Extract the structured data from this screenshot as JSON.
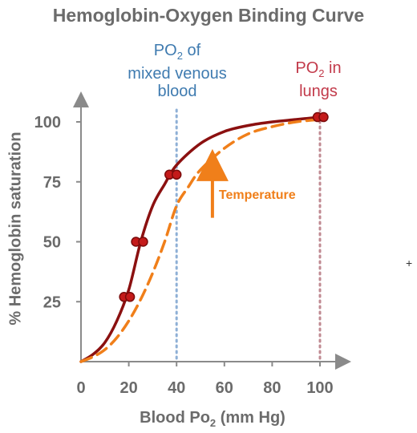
{
  "chart_data": {
    "type": "line",
    "title": "Hemoglobin-Oxygen Binding Curve",
    "xlabel_main": "Blood Po",
    "xlabel_sub": "2",
    "xlabel_rest": " (mm Hg)",
    "ylabel": "% Hemoglobin saturation",
    "xlim": [
      0,
      105
    ],
    "ylim": [
      0,
      110
    ],
    "xticks": [
      0,
      20,
      40,
      60,
      80,
      100
    ],
    "yticks": [
      25,
      50,
      75,
      100
    ],
    "series": [
      {
        "style": "solid",
        "color": "#8b1010",
        "x": [
          0,
          5,
          10,
          15,
          20,
          25,
          30,
          35,
          40,
          50,
          60,
          70,
          80,
          90,
          100
        ],
        "y": [
          0,
          3,
          8,
          17,
          30,
          50,
          65,
          74,
          82,
          91,
          96,
          98.5,
          100,
          101,
          102
        ]
      },
      {
        "style": "dashed",
        "color": "#f07f1a",
        "x": [
          0,
          5,
          10,
          15,
          20,
          25,
          30,
          35,
          40,
          45,
          50,
          60,
          70,
          80,
          90,
          100
        ],
        "y": [
          0,
          2,
          5,
          10,
          17,
          26,
          37,
          50,
          65,
          73,
          80,
          89,
          95,
          98,
          100,
          101
        ]
      }
    ],
    "points": [
      {
        "x": 18,
        "y": 27
      },
      {
        "x": 20.5,
        "y": 27
      },
      {
        "x": 23,
        "y": 50
      },
      {
        "x": 26,
        "y": 50
      },
      {
        "x": 37,
        "y": 78
      },
      {
        "x": 40,
        "y": 78
      },
      {
        "x": 99,
        "y": 102
      },
      {
        "x": 101.5,
        "y": 102
      }
    ],
    "reference_lines": [
      {
        "x": 40,
        "color": "#8fb0d6"
      },
      {
        "x": 100,
        "color": "#c08a92"
      }
    ],
    "annotations": {
      "venous": {
        "line1": "PO",
        "sub": "2",
        "line1_rest": " of",
        "line2": "mixed venous",
        "line3": "blood"
      },
      "lungs": {
        "line1": "PO",
        "sub": "2",
        "line1_rest": " in",
        "line2": "lungs"
      },
      "temperature": {
        "text": "Temperature",
        "arrow_x": 55,
        "arrow_y_from": 60,
        "arrow_y_to": 82
      }
    },
    "colors": {
      "axis": "#8a8a8a",
      "text": "#6b6b6b",
      "venous": "#3f7bb0",
      "lungs": "#c23a4a",
      "temperature": "#f07f1a",
      "point": "#c41a1a"
    }
  }
}
